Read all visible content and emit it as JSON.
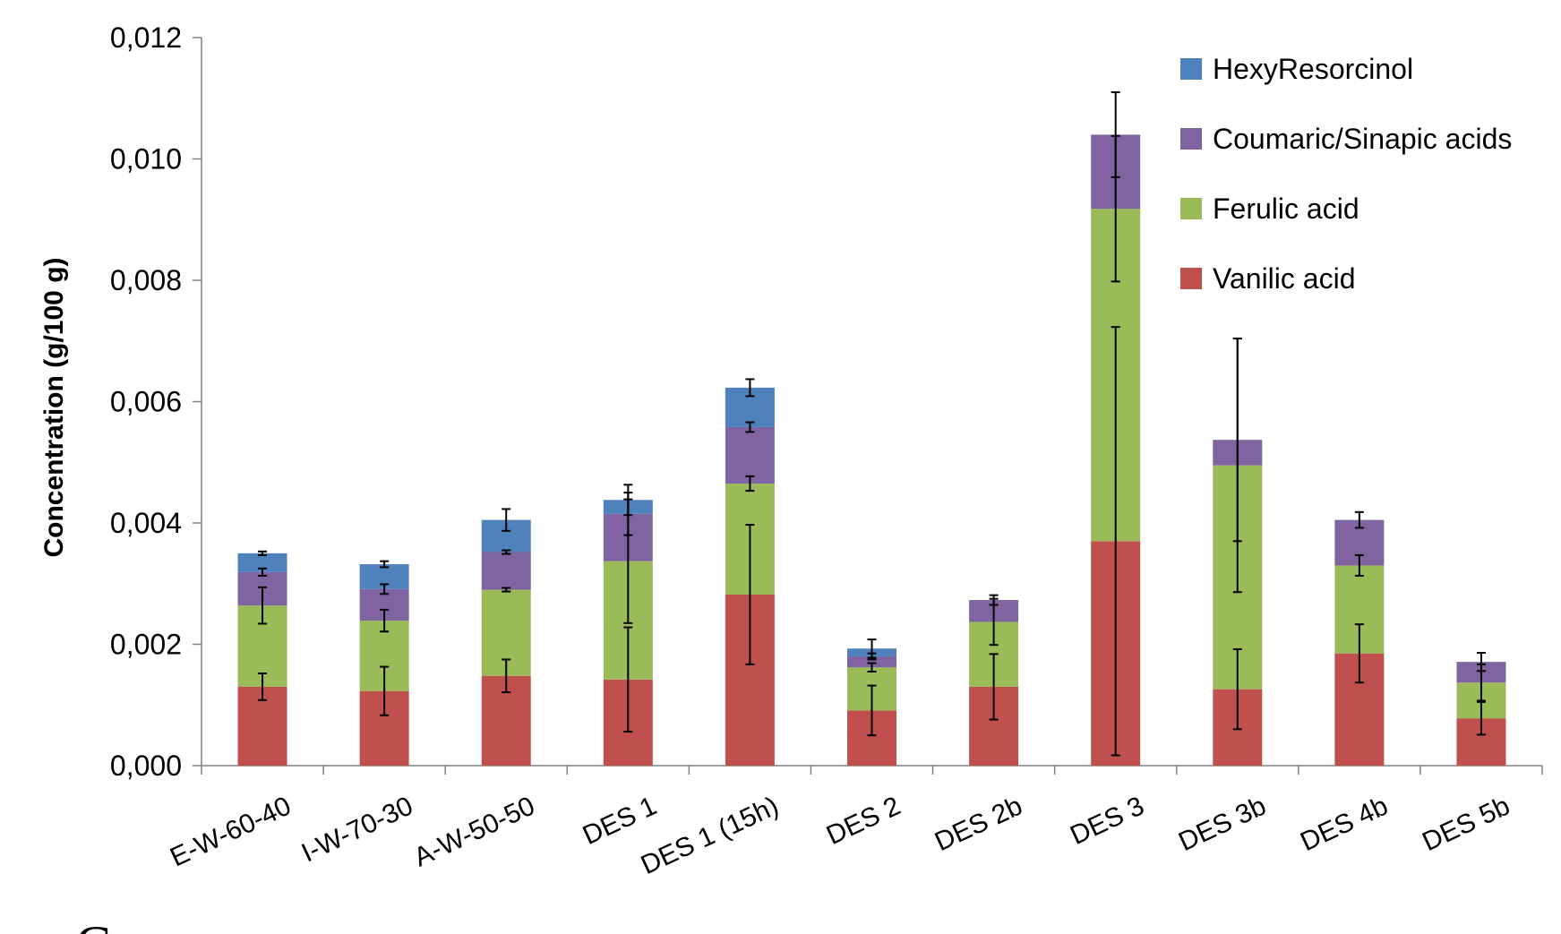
{
  "chart_data": {
    "type": "bar",
    "stacked": true,
    "categories": [
      "E-W-60-40",
      "I-W-70-30",
      "A-W-50-50",
      "DES 1",
      "DES 1 (15h)",
      "DES 2",
      "DES 2b",
      "DES 3",
      "DES 3b",
      "DES 4b",
      "DES 5b"
    ],
    "ylabel": "Concentration (g/100 g)",
    "ylim": [
      0,
      0.012
    ],
    "yticks": [
      "0,000",
      "0,002",
      "0,004",
      "0,006",
      "0,008",
      "0,010",
      "0,012"
    ],
    "grid": false,
    "legend_position": "top-right",
    "series": [
      {
        "name": "Vanilic acid",
        "color": "#c0504d",
        "values": [
          0.0013,
          0.00123,
          0.00148,
          0.00142,
          0.00282,
          0.00091,
          0.0013,
          0.0037,
          0.00126,
          0.00185,
          0.00078
        ],
        "errors": [
          0.00022,
          0.0004,
          0.00027,
          0.00086,
          0.00115,
          0.00041,
          0.00054,
          0.00353,
          0.00066,
          0.00048,
          0.00027
        ]
      },
      {
        "name": "Ferulic acid",
        "color": "#9bbb59",
        "values": [
          0.00134,
          0.00116,
          0.00142,
          0.00195,
          0.00183,
          0.00071,
          0.00107,
          0.00548,
          0.00369,
          0.00145,
          0.00059
        ],
        "errors": [
          0.0003,
          0.00018,
          3e-05,
          0.00102,
          0.00012,
          7e-05,
          0.00038,
          0.0012,
          0.00209,
          0.00017,
          0.0003
        ]
      },
      {
        "name": "Coumaric/Sinapic acids",
        "color": "#8064a2",
        "values": [
          0.00055,
          0.00052,
          0.00062,
          0.00078,
          0.00093,
          0.00018,
          0.00036,
          0.00122,
          0.00042,
          0.00075,
          0.00034
        ],
        "errors": [
          6e-05,
          8e-05,
          3e-05,
          0.00035,
          8e-05,
          5e-05,
          8e-05,
          0.0007,
          0.00167,
          0.00013,
          0.00015
        ]
      },
      {
        "name": "HexyResorcinol",
        "color": "#4f81bd",
        "values": [
          0.00031,
          0.00041,
          0.00053,
          0.00023,
          0.00065,
          0.00013,
          0,
          0,
          0,
          0,
          0
        ],
        "errors": [
          3e-05,
          5e-05,
          0.00018,
          0.00025,
          0.00014,
          0.00015,
          0,
          0,
          0,
          0,
          0
        ]
      }
    ]
  },
  "caption_fragment": "C"
}
